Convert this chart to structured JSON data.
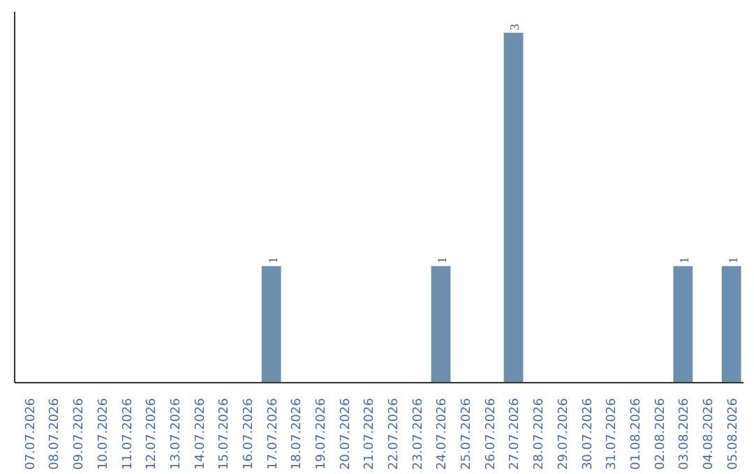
{
  "chart_data": {
    "type": "bar",
    "categories": [
      "07.07.2026",
      "08.07.2026",
      "09.07.2026",
      "10.07.2026",
      "11.07.2026",
      "12.07.2026",
      "13.07.2026",
      "14.07.2026",
      "15.07.2026",
      "16.07.2026",
      "17.07.2026",
      "18.07.2026",
      "19.07.2026",
      "20.07.2026",
      "21.07.2026",
      "22.07.2026",
      "23.07.2026",
      "24.07.2026",
      "25.07.2026",
      "26.07.2026",
      "27.07.2026",
      "28.07.2026",
      "29.07.2026",
      "30.07.2026",
      "31.07.2026",
      "01.08.2026",
      "02.08.2026",
      "03.08.2026",
      "04.08.2026",
      "05.08.2026"
    ],
    "values": [
      0,
      0,
      0,
      0,
      0,
      0,
      0,
      0,
      0,
      0,
      1,
      0,
      0,
      0,
      0,
      0,
      0,
      1,
      0,
      0,
      3,
      0,
      0,
      0,
      0,
      0,
      0,
      1,
      0,
      1
    ],
    "value_labels": [
      null,
      null,
      null,
      null,
      null,
      null,
      null,
      null,
      null,
      null,
      "1",
      null,
      null,
      null,
      null,
      null,
      null,
      "1",
      null,
      null,
      "3",
      null,
      null,
      null,
      null,
      null,
      null,
      "1",
      null,
      "1"
    ],
    "color": "#6d8fae",
    "grid": false
  }
}
